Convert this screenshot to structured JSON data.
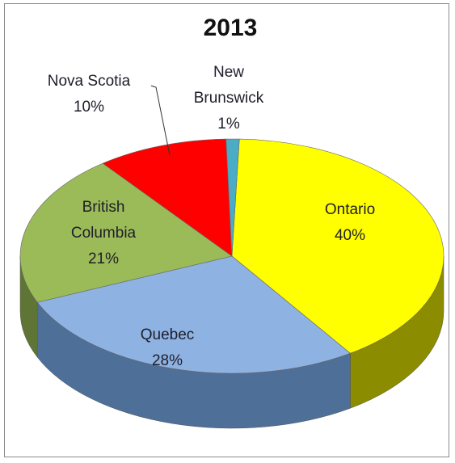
{
  "chart_data": {
    "type": "pie",
    "title": "2013",
    "slices": [
      {
        "name": "Ontario",
        "value": 40,
        "label": "40%",
        "color": "#ffff00",
        "side_color": "#8c8c00",
        "label_lines": [
          "Ontario",
          "40%"
        ]
      },
      {
        "name": "Quebec",
        "value": 28,
        "label": "28%",
        "color": "#8eb2e2",
        "side_color": "#4e6f98",
        "label_lines": [
          "Quebec",
          "28%"
        ]
      },
      {
        "name": "British Columbia",
        "value": 21,
        "label": "21%",
        "color": "#9bbb59",
        "side_color": "#5f7535",
        "label_lines": [
          "British",
          "Columbia",
          "21%"
        ]
      },
      {
        "name": "Nova Scotia",
        "value": 10,
        "label": "10%",
        "color": "#ff0000",
        "side_color": "#990000",
        "label_lines": [
          "Nova Scotia",
          "10%"
        ]
      },
      {
        "name": "New Brunswick",
        "value": 1,
        "label": "1%",
        "color": "#4bacc6",
        "side_color": "#2d6b7d",
        "label_lines": [
          "New",
          "Brunswick",
          "1%"
        ]
      }
    ],
    "style": "3d-pie",
    "legend": "none"
  }
}
